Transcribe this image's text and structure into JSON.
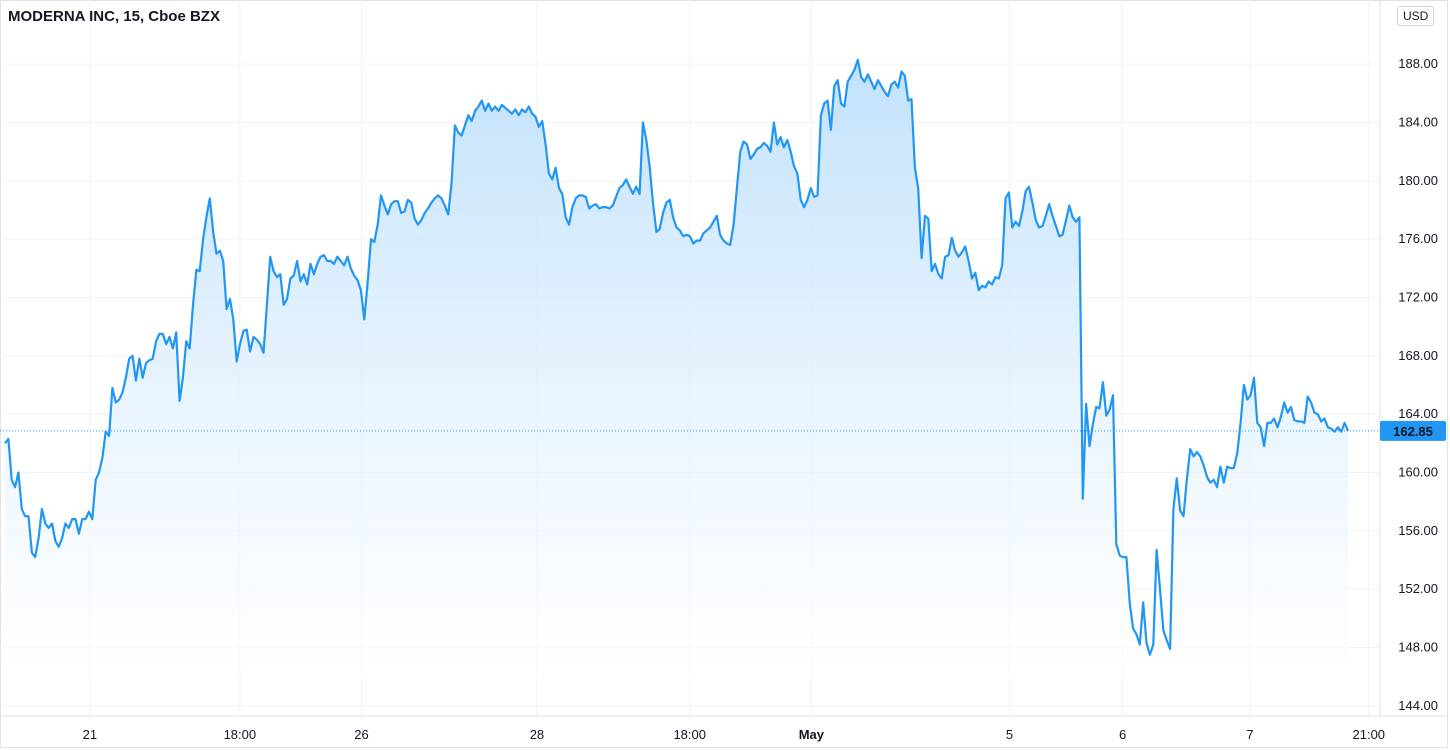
{
  "header": {
    "title": "MODERNA INC, 15, Cboe BZX",
    "currency": "USD"
  },
  "colors": {
    "line": "#2196f3",
    "fill_top": "#bbdefb",
    "fill_bottom": "#ffffff",
    "grid": "#f0f3fa",
    "last_label_bg": "#2196f3"
  },
  "chart_data": {
    "type": "area",
    "title": "MODERNA INC, 15, Cboe BZX",
    "ylim": [
      143.3,
      192.4
    ],
    "y_ticks": [
      "144.00",
      "148.00",
      "152.00",
      "156.00",
      "160.00",
      "164.00",
      "168.00",
      "172.00",
      "176.00",
      "180.00",
      "184.00",
      "188.00"
    ],
    "x_ticks": [
      {
        "label": "21",
        "at": 30,
        "strong": false
      },
      {
        "label": "18:00",
        "at": 83,
        "strong": false
      },
      {
        "label": "26",
        "at": 126,
        "strong": false
      },
      {
        "label": "28",
        "at": 188,
        "strong": false
      },
      {
        "label": "18:00",
        "at": 242,
        "strong": false
      },
      {
        "label": "May",
        "at": 285,
        "strong": true
      },
      {
        "label": "5",
        "at": 355,
        "strong": false
      },
      {
        "label": "6",
        "at": 395,
        "strong": false
      },
      {
        "label": "7",
        "at": 440,
        "strong": false
      },
      {
        "label": "21:00",
        "at": 482,
        "strong": false
      }
    ],
    "x_range": [
      0,
      510
    ],
    "last_value": "162.85",
    "last": 162.85,
    "values": [
      162,
      162.3,
      159.5,
      159,
      160,
      157.5,
      157,
      157,
      154.5,
      154.2,
      155.5,
      157.5,
      156.5,
      156.2,
      156.5,
      155.3,
      154.9,
      155.5,
      156.5,
      156.2,
      156.8,
      156.8,
      155.8,
      156.8,
      156.8,
      157.3,
      156.8,
      159.5,
      160,
      161,
      162.8,
      162.5,
      165.8,
      164.8,
      165,
      165.5,
      166.5,
      167.8,
      168,
      166.3,
      167.8,
      166.5,
      167.5,
      167.7,
      167.8,
      169,
      169.5,
      169.5,
      168.8,
      169.3,
      168.5,
      169.6,
      164.9,
      166.5,
      169,
      168.5,
      171.5,
      173.9,
      173.8,
      176,
      177.5,
      178.8,
      176.5,
      175,
      175.2,
      174.5,
      171.2,
      171.9,
      170.5,
      167.6,
      168.8,
      169.7,
      169.8,
      168.3,
      169.3,
      169.1,
      168.8,
      168.2,
      171.5,
      174.8,
      173.8,
      173.4,
      173.6,
      171.5,
      171.9,
      173.3,
      173.5,
      174.5,
      173.1,
      173.6,
      172.9,
      174.3,
      173.6,
      174.3,
      174.8,
      174.9,
      174.5,
      174.5,
      174.3,
      174.8,
      174.5,
      174.2,
      174.8,
      174,
      173.5,
      173.2,
      172.5,
      170.5,
      173,
      176,
      175.8,
      177,
      179,
      178.3,
      177.7,
      178.4,
      178.6,
      178.6,
      177.8,
      177.9,
      178.7,
      178.5,
      177.4,
      177,
      177.3,
      177.8,
      178.1,
      178.5,
      178.8,
      179,
      178.8,
      178.3,
      177.7,
      179.8,
      183.8,
      183.3,
      183.1,
      183.8,
      184.5,
      184.1,
      184.8,
      185.1,
      185.5,
      184.8,
      185.3,
      184.8,
      185.1,
      184.8,
      185.2,
      185,
      184.8,
      184.6,
      184.9,
      184.5,
      184.9,
      184.7,
      185.1,
      184.6,
      184.4,
      183.7,
      184.1,
      182.5,
      180.5,
      180.1,
      180.9,
      179.5,
      179.1,
      177.5,
      177,
      178.2,
      178.8,
      179,
      179,
      178.9,
      178.1,
      178.3,
      178.4,
      178.1,
      178.2,
      178.2,
      178.1,
      178.3,
      178.9,
      179.5,
      179.7,
      180.1,
      179.6,
      179.1,
      179.6,
      179.1,
      184,
      182.8,
      181,
      178.5,
      176.5,
      176.7,
      177.8,
      178.5,
      178.7,
      177.5,
      176.8,
      176.6,
      176.2,
      176.3,
      176.2,
      175.7,
      175.9,
      175.9,
      176.4,
      176.6,
      176.8,
      177.2,
      177.6,
      176.3,
      175.9,
      175.7,
      175.6,
      177,
      179.5,
      182,
      182.7,
      182.5,
      181.5,
      181.8,
      182.2,
      182.3,
      182.6,
      182.4,
      182,
      184,
      182.5,
      183,
      182.3,
      182.8,
      182,
      181,
      180.5,
      178.7,
      178.2,
      178.7,
      179.5,
      178.9,
      179,
      184.5,
      185.3,
      185.5,
      183.5,
      186.5,
      186.9,
      185.3,
      185.1,
      186.8,
      187.2,
      187.6,
      188.3,
      187.1,
      186.8,
      187.3,
      186.8,
      186.3,
      186.9,
      186.5,
      186.1,
      185.8,
      186.6,
      186.8,
      186.4,
      187.5,
      187.2,
      185.5,
      185.6,
      180.9,
      179.5,
      174.7,
      177.6,
      177.4,
      173.8,
      174.3,
      173.6,
      173.3,
      174.8,
      174.9,
      176.1,
      175.2,
      174.8,
      175.1,
      175.5,
      174.5,
      173.3,
      173.7,
      172.5,
      172.8,
      172.7,
      173.1,
      172.9,
      173.4,
      173.3,
      174.2,
      178.8,
      179.2,
      176.8,
      177.2,
      176.9,
      177.9,
      179.3,
      179.6,
      178.5,
      177.3,
      176.8,
      176.9,
      177.6,
      178.4,
      177.6,
      176.9,
      176.2,
      176.3,
      177.3,
      178.3,
      177.5,
      177.2,
      177.5,
      158.2,
      164.7,
      161.8,
      163.3,
      164.5,
      164.4,
      166.2,
      163.9,
      164.3,
      165.3,
      155.1,
      154.3,
      154.2,
      154.2,
      151,
      149.3,
      148.9,
      148.2,
      151.1,
      148.3,
      147.5,
      148.2,
      154.7,
      152,
      149.2,
      148.5,
      147.9,
      157.5,
      159.6,
      157.4,
      157,
      159.5,
      161.6,
      161.1,
      161.4,
      161.1,
      160.5,
      159.7,
      159.3,
      159.5,
      159,
      160.4,
      159.3,
      160.4,
      160.3,
      160.3,
      161.3,
      163.4,
      166,
      165,
      165.3,
      166.5,
      163.4,
      163.1,
      161.8,
      163.4,
      163.4,
      163.7,
      163.1,
      163.8,
      164.8,
      164.1,
      164.5,
      163.6,
      163.5,
      163.5,
      163.4,
      165.2,
      164.8,
      164.1,
      164,
      163.5,
      163.7,
      163.1,
      163,
      162.8,
      163.1,
      162.8,
      163.4,
      162.85
    ]
  }
}
